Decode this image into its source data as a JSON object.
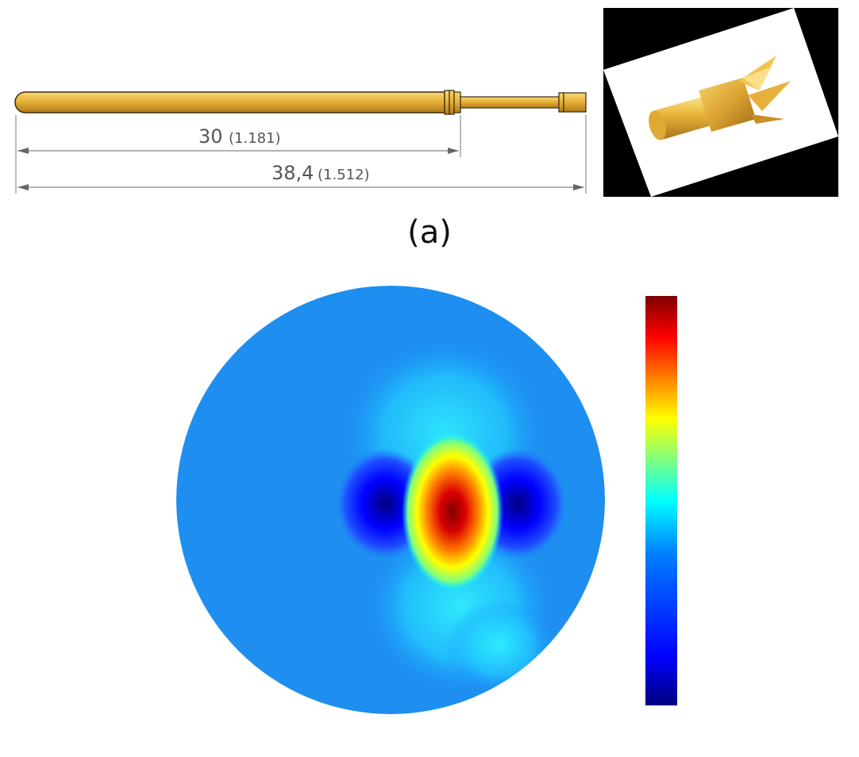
{
  "probe": {
    "dimension_1": {
      "value": "30",
      "unit_value": "(1.181)"
    },
    "dimension_2": {
      "value": "38,4",
      "unit_value": "(1.512)"
    },
    "colors": {
      "gold_light": "#f3c34a",
      "gold_dark": "#b8860b",
      "outline": "#3a2a10"
    }
  },
  "caption": {
    "a": "(a)"
  },
  "colorbar": {
    "stops": [
      "#00007f",
      "#0000ff",
      "#007fff",
      "#00ffff",
      "#7fff7f",
      "#ffff00",
      "#ff7f00",
      "#ff0000",
      "#7f0000"
    ]
  }
}
